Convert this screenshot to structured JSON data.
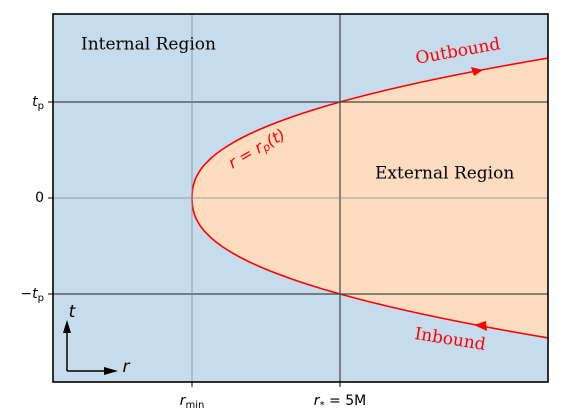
{
  "diagram": {
    "regions": {
      "internal": "Internal Region",
      "external": "External Region"
    },
    "curve_label": {
      "base": "r = r",
      "sub": "p",
      "tail": "(t)"
    },
    "arrows": {
      "outbound": "Outbound",
      "inbound": "Inbound"
    },
    "y_labels": [
      {
        "base": "t",
        "sub": "p"
      },
      {
        "base": "0"
      },
      {
        "base": "−t",
        "sub": "p"
      }
    ],
    "x_labels": [
      {
        "base": "r",
        "sub": "min"
      },
      {
        "base": "r",
        "sub": "*",
        "tail": " = 5M"
      }
    ],
    "axes_key": {
      "t": "t",
      "r": "r"
    }
  }
}
